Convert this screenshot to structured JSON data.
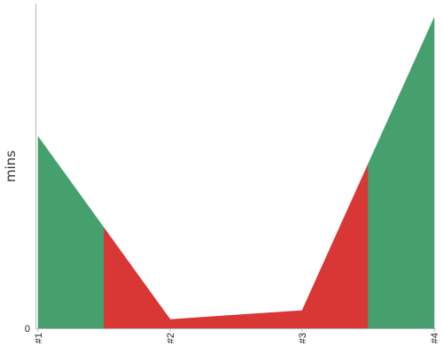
{
  "chart_data": {
    "type": "area",
    "categories": [
      "#1",
      "#2",
      "#3",
      "#4"
    ],
    "values": [
      216,
      10,
      20,
      350
    ],
    "ylabel": "mins",
    "xlabel": "",
    "title": "",
    "ylim": [
      0,
      366
    ],
    "y_tick_labels": [
      "0"
    ],
    "fill_rule": "alternating color by segment half: first half of each step keeps the previous color",
    "colors": {
      "green": "#45a06e",
      "red": "#d93636"
    },
    "segment_colors": [
      "green",
      "red",
      "red",
      "red",
      "red",
      "green"
    ],
    "grid": false,
    "legend": "none"
  }
}
